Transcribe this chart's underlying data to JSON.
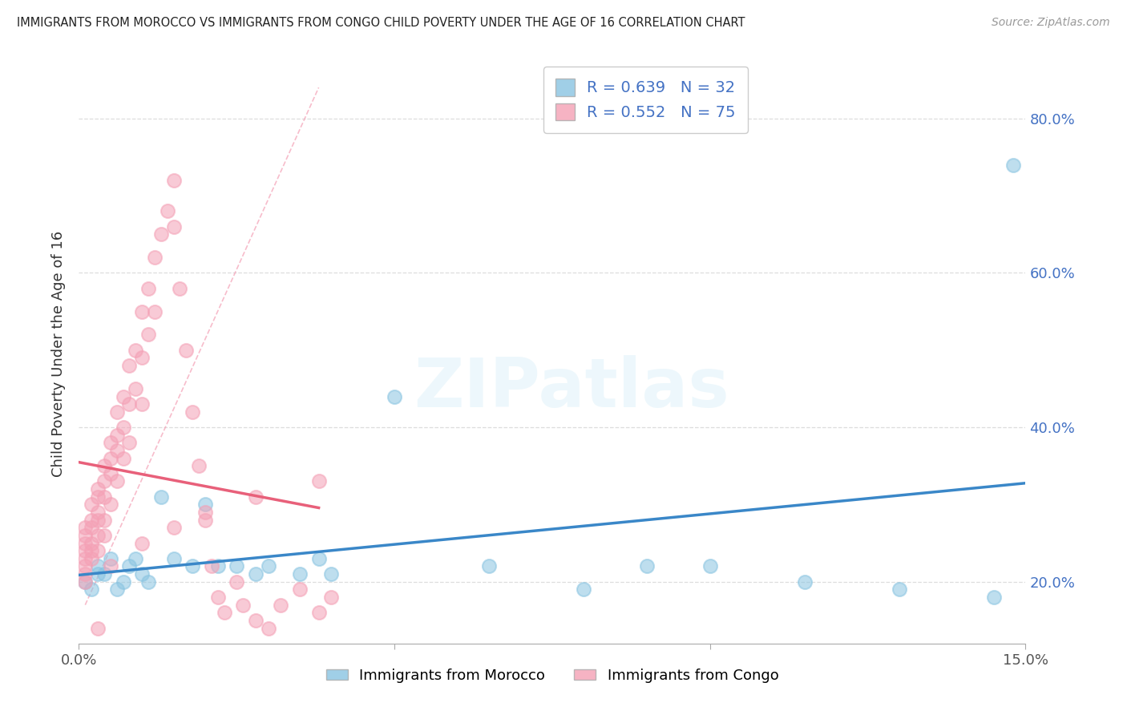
{
  "title": "IMMIGRANTS FROM MOROCCO VS IMMIGRANTS FROM CONGO CHILD POVERTY UNDER THE AGE OF 16 CORRELATION CHART",
  "source": "Source: ZipAtlas.com",
  "ylabel": "Child Poverty Under the Age of 16",
  "xlim": [
    0.0,
    0.15
  ],
  "ylim": [
    0.12,
    0.87
  ],
  "xtick_vals": [
    0.0,
    0.05,
    0.1,
    0.15
  ],
  "ytick_right_vals": [
    0.2,
    0.4,
    0.6,
    0.8
  ],
  "ytick_right_labels": [
    "20.0%",
    "40.0%",
    "60.0%",
    "80.0%"
  ],
  "morocco_color": "#89c4e1",
  "congo_color": "#f4a0b5",
  "morocco_line_color": "#3a87c8",
  "congo_line_color": "#e8607a",
  "dashed_line_color": "#f4a0b5",
  "R_morocco": "0.639",
  "N_morocco": "32",
  "R_congo": "0.552",
  "N_congo": "75",
  "legend_label_morocco": "Immigrants from Morocco",
  "legend_label_congo": "Immigrants from Congo",
  "watermark": "ZIPatlas",
  "R_N_color": "#4472c4",
  "background_color": "#ffffff",
  "grid_color": "#dddddd",
  "title_color": "#222222",
  "right_tick_color": "#4472c4",
  "morocco_x": [
    0.001,
    0.002,
    0.003,
    0.003,
    0.004,
    0.005,
    0.006,
    0.007,
    0.008,
    0.009,
    0.01,
    0.011,
    0.013,
    0.015,
    0.018,
    0.02,
    0.022,
    0.025,
    0.028,
    0.03,
    0.035,
    0.038,
    0.04,
    0.05,
    0.065,
    0.08,
    0.09,
    0.1,
    0.115,
    0.13,
    0.145,
    0.148
  ],
  "morocco_y": [
    0.2,
    0.19,
    0.21,
    0.22,
    0.21,
    0.23,
    0.19,
    0.2,
    0.22,
    0.23,
    0.21,
    0.2,
    0.31,
    0.23,
    0.22,
    0.3,
    0.22,
    0.22,
    0.21,
    0.22,
    0.21,
    0.23,
    0.21,
    0.44,
    0.22,
    0.19,
    0.22,
    0.22,
    0.2,
    0.19,
    0.18,
    0.74
  ],
  "congo_x": [
    0.001,
    0.001,
    0.001,
    0.001,
    0.001,
    0.001,
    0.001,
    0.001,
    0.002,
    0.002,
    0.002,
    0.002,
    0.002,
    0.002,
    0.003,
    0.003,
    0.003,
    0.003,
    0.003,
    0.003,
    0.004,
    0.004,
    0.004,
    0.004,
    0.004,
    0.005,
    0.005,
    0.005,
    0.005,
    0.006,
    0.006,
    0.006,
    0.006,
    0.007,
    0.007,
    0.007,
    0.008,
    0.008,
    0.008,
    0.009,
    0.009,
    0.01,
    0.01,
    0.01,
    0.011,
    0.011,
    0.012,
    0.012,
    0.013,
    0.014,
    0.015,
    0.015,
    0.016,
    0.017,
    0.018,
    0.019,
    0.02,
    0.021,
    0.022,
    0.023,
    0.025,
    0.026,
    0.028,
    0.03,
    0.032,
    0.035,
    0.038,
    0.04,
    0.038,
    0.028,
    0.02,
    0.015,
    0.01,
    0.005,
    0.003
  ],
  "congo_y": [
    0.24,
    0.22,
    0.25,
    0.23,
    0.26,
    0.21,
    0.27,
    0.2,
    0.28,
    0.25,
    0.3,
    0.23,
    0.27,
    0.24,
    0.32,
    0.29,
    0.26,
    0.31,
    0.28,
    0.24,
    0.35,
    0.31,
    0.28,
    0.33,
    0.26,
    0.38,
    0.34,
    0.3,
    0.36,
    0.42,
    0.37,
    0.33,
    0.39,
    0.44,
    0.4,
    0.36,
    0.48,
    0.43,
    0.38,
    0.5,
    0.45,
    0.55,
    0.49,
    0.43,
    0.58,
    0.52,
    0.62,
    0.55,
    0.65,
    0.68,
    0.72,
    0.66,
    0.58,
    0.5,
    0.42,
    0.35,
    0.28,
    0.22,
    0.18,
    0.16,
    0.2,
    0.17,
    0.15,
    0.14,
    0.17,
    0.19,
    0.16,
    0.18,
    0.33,
    0.31,
    0.29,
    0.27,
    0.25,
    0.22,
    0.14
  ]
}
